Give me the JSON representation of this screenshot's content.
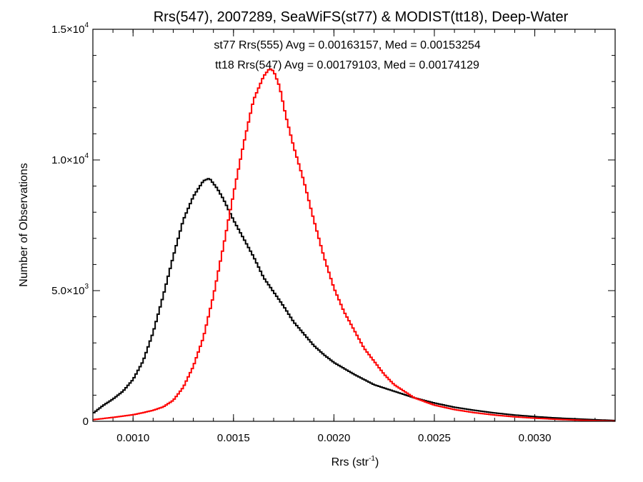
{
  "chart_data": {
    "type": "line",
    "title": "Rrs(547), 2007289, SeaWiFS(st77) & MODIST(tt18), Deep-Water",
    "xlabel": "Rrs (str",
    "xlabel_sup": "-1",
    "xlabel_close": ")",
    "ylabel": "Number of Observations",
    "xlim": [
      0.0008,
      0.0034
    ],
    "ylim": [
      0,
      15000
    ],
    "x_ticks": [
      {
        "value": 0.001,
        "label": "0.0010"
      },
      {
        "value": 0.0015,
        "label": "0.0015"
      },
      {
        "value": 0.002,
        "label": "0.0020"
      },
      {
        "value": 0.0025,
        "label": "0.0025"
      },
      {
        "value": 0.003,
        "label": "0.0030"
      }
    ],
    "y_ticks": [
      {
        "value": 0,
        "label": "0",
        "sup": ""
      },
      {
        "value": 5000,
        "label": "5.0×10",
        "sup": "3"
      },
      {
        "value": 10000,
        "label": "1.0×10",
        "sup": "4"
      },
      {
        "value": 15000,
        "label": "1.5×10",
        "sup": "4"
      }
    ],
    "grid": false,
    "annotations": [
      {
        "text": "st77 Rrs(555) Avg = 0.00163157, Med = 0.00153254",
        "color": "#000000"
      },
      {
        "text": "tt18 Rrs(547) Avg = 0.00179103, Med = 0.00174129",
        "color": "#ff0000"
      }
    ],
    "series": [
      {
        "color": "#000000",
        "style": "histogram-step",
        "x": [
          0.0008,
          0.00085,
          0.0009,
          0.00095,
          0.001,
          0.00105,
          0.0011,
          0.00115,
          0.0012,
          0.00125,
          0.0013,
          0.00135,
          0.00138,
          0.00142,
          0.00145,
          0.0015,
          0.00155,
          0.0016,
          0.00165,
          0.0017,
          0.00175,
          0.0018,
          0.00185,
          0.0019,
          0.00195,
          0.002,
          0.0021,
          0.0022,
          0.0023,
          0.0024,
          0.0025,
          0.0026,
          0.0027,
          0.0028,
          0.0029,
          0.003,
          0.0031,
          0.0032,
          0.0033,
          0.0034
        ],
        "y": [
          300,
          600,
          850,
          1150,
          1600,
          2300,
          3400,
          4800,
          6300,
          7700,
          8600,
          9200,
          9300,
          8900,
          8500,
          7700,
          7000,
          6300,
          5500,
          4950,
          4400,
          3800,
          3350,
          2900,
          2550,
          2250,
          1800,
          1400,
          1150,
          900,
          700,
          540,
          420,
          320,
          240,
          180,
          130,
          95,
          60,
          30
        ]
      },
      {
        "color": "#ff0000",
        "style": "histogram-step",
        "x": [
          0.0008,
          0.0009,
          0.001,
          0.00105,
          0.0011,
          0.00115,
          0.0012,
          0.00125,
          0.0013,
          0.00135,
          0.0014,
          0.00145,
          0.0015,
          0.00155,
          0.0016,
          0.00165,
          0.00168,
          0.0017,
          0.00173,
          0.00176,
          0.0018,
          0.00185,
          0.0019,
          0.00195,
          0.002,
          0.00205,
          0.0021,
          0.00215,
          0.0022,
          0.00225,
          0.0023,
          0.0024,
          0.0025,
          0.0026,
          0.0027,
          0.0028,
          0.0029,
          0.003,
          0.0031,
          0.0032,
          0.0033,
          0.0034
        ],
        "y": [
          60,
          150,
          250,
          330,
          420,
          550,
          800,
          1300,
          2100,
          3200,
          4800,
          6700,
          8700,
          10600,
          12300,
          13200,
          13500,
          13400,
          12800,
          11700,
          10500,
          9200,
          7700,
          6300,
          5100,
          4200,
          3500,
          2800,
          2300,
          1800,
          1400,
          900,
          620,
          450,
          330,
          240,
          170,
          120,
          80,
          50,
          25,
          10
        ]
      }
    ]
  }
}
